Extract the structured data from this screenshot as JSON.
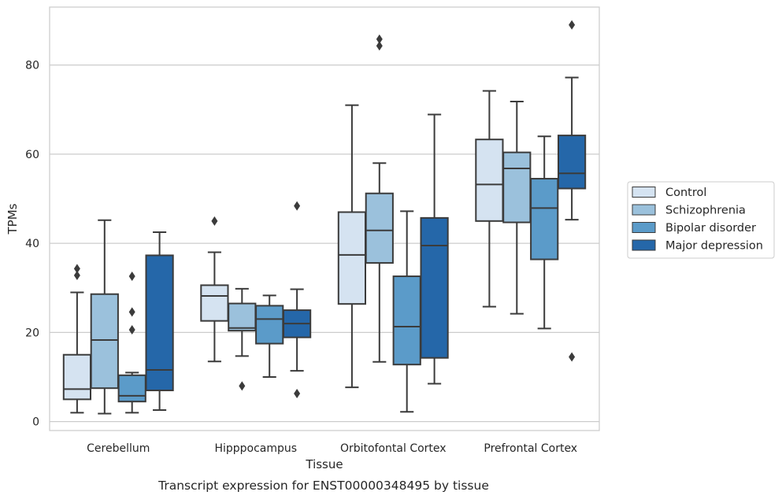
{
  "chart_data": {
    "type": "box",
    "title": "",
    "caption": "Transcript expression for ENST00000348495 by tissue",
    "xlabel": "Tissue",
    "ylabel": "TPMs",
    "ylim": [
      -2,
      93
    ],
    "yticks": [
      0,
      20,
      40,
      60,
      80
    ],
    "grid": "horizontal",
    "legend_position": "right",
    "categories": [
      "Cerebellum",
      "Hipppocampus",
      "Orbitofontal Cortex",
      "Prefrontal Cortex"
    ],
    "series": [
      {
        "name": "Control",
        "color": "#d5e3f1",
        "boxes": [
          {
            "whislo": 2,
            "q1": 5,
            "med": 7.3,
            "q3": 15,
            "whishi": 29,
            "fliers": [
              32.8,
              34.3
            ]
          },
          {
            "whislo": 13.5,
            "q1": 22.6,
            "med": 28.2,
            "q3": 30.6,
            "whishi": 38,
            "fliers": [
              45
            ]
          },
          {
            "whislo": 7.7,
            "q1": 26.4,
            "med": 37.4,
            "q3": 47,
            "whishi": 71,
            "fliers": []
          },
          {
            "whislo": 25.8,
            "q1": 45,
            "med": 53.2,
            "q3": 63.3,
            "whishi": 74.2,
            "fliers": []
          }
        ]
      },
      {
        "name": "Schizophrenia",
        "color": "#9bc1dc",
        "boxes": [
          {
            "whislo": 1.8,
            "q1": 7.5,
            "med": 18.3,
            "q3": 28.6,
            "whishi": 45.2,
            "fliers": []
          },
          {
            "whislo": 14.7,
            "q1": 20.4,
            "med": 21,
            "q3": 26.5,
            "whishi": 29.8,
            "fliers": [
              8
            ]
          },
          {
            "whislo": 13.4,
            "q1": 35.6,
            "med": 42.9,
            "q3": 51.2,
            "whishi": 58,
            "fliers": [
              84.3,
              85.8
            ]
          },
          {
            "whislo": 24.2,
            "q1": 44.7,
            "med": 56.8,
            "q3": 60.4,
            "whishi": 71.8,
            "fliers": []
          }
        ]
      },
      {
        "name": "Bipolar disorder",
        "color": "#5b9bc9",
        "boxes": [
          {
            "whislo": 2,
            "q1": 4.5,
            "med": 5.8,
            "q3": 10.4,
            "whishi": 11,
            "fliers": [
              20.6,
              24.6,
              32.6
            ]
          },
          {
            "whislo": 10,
            "q1": 17.5,
            "med": 23,
            "q3": 26,
            "whishi": 28.3,
            "fliers": []
          },
          {
            "whislo": 2.2,
            "q1": 12.8,
            "med": 21.3,
            "q3": 32.6,
            "whishi": 47.2,
            "fliers": []
          },
          {
            "whislo": 20.9,
            "q1": 36.4,
            "med": 47.9,
            "q3": 54.5,
            "whishi": 64,
            "fliers": []
          }
        ]
      },
      {
        "name": "Major depression",
        "color": "#2567a9",
        "boxes": [
          {
            "whislo": 2.6,
            "q1": 7,
            "med": 11.6,
            "q3": 37.3,
            "whishi": 42.5,
            "fliers": []
          },
          {
            "whislo": 11.4,
            "q1": 18.9,
            "med": 22,
            "q3": 25,
            "whishi": 29.7,
            "fliers": [
              6.3,
              48.4
            ]
          },
          {
            "whislo": 8.5,
            "q1": 14.3,
            "med": 39.5,
            "q3": 45.7,
            "whishi": 68.9,
            "fliers": []
          },
          {
            "whislo": 45.3,
            "q1": 52.3,
            "med": 55.7,
            "q3": 64.2,
            "whishi": 77.2,
            "fliers": [
              14.5,
              89
            ]
          }
        ]
      }
    ]
  }
}
